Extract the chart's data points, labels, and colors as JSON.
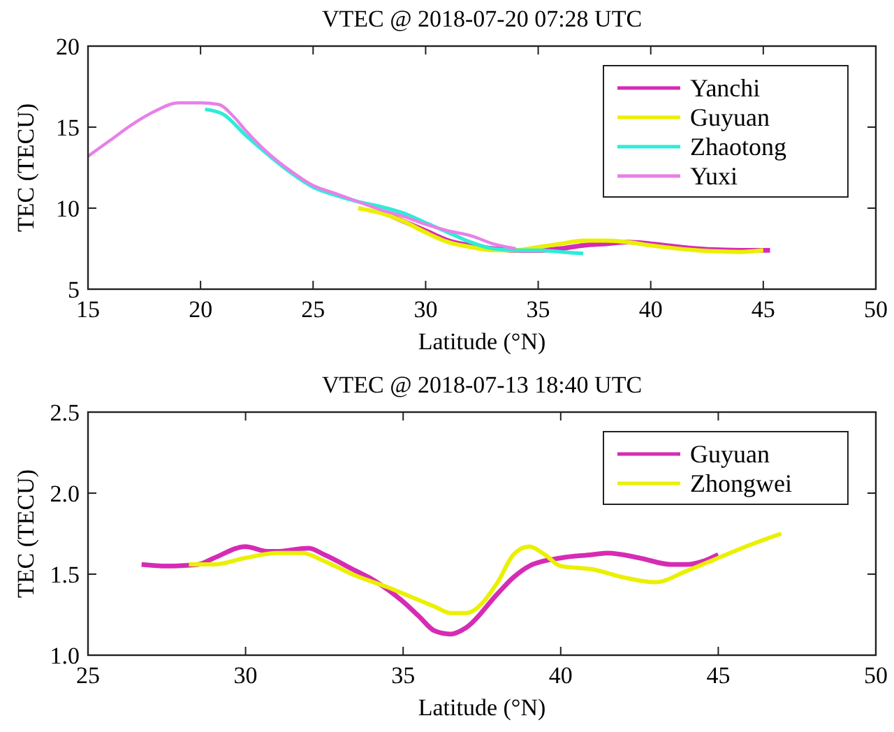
{
  "chart_data": [
    {
      "type": "line",
      "title": "VTEC @ 2018-07-20 07:28 UTC",
      "xlabel": "Latitude (°N)",
      "ylabel": "TEC (TECU)",
      "xlim": [
        15,
        50
      ],
      "xticks": [
        15,
        20,
        25,
        30,
        35,
        40,
        45,
        50
      ],
      "ylim": [
        5,
        20
      ],
      "yticks": [
        5,
        10,
        15,
        20
      ],
      "grid": false,
      "legend": "top right",
      "series": [
        {
          "name": "Yanchi",
          "color": "#d62bb5",
          "x": [
            28.5,
            30,
            31,
            32,
            33,
            34,
            35,
            36,
            37,
            38,
            39,
            40,
            42,
            44,
            45.3
          ],
          "values": [
            9.5,
            8.6,
            8.0,
            7.7,
            7.5,
            7.4,
            7.4,
            7.5,
            7.7,
            7.8,
            7.9,
            7.8,
            7.5,
            7.4,
            7.4
          ]
        },
        {
          "name": "Guyuan",
          "color": "#eaf000",
          "x": [
            27,
            28,
            29,
            30,
            31,
            32,
            33,
            34,
            35,
            36,
            37,
            38,
            39,
            40,
            42,
            44,
            45
          ],
          "values": [
            10.0,
            9.7,
            9.2,
            8.5,
            7.9,
            7.6,
            7.4,
            7.4,
            7.6,
            7.8,
            8.0,
            8.0,
            7.9,
            7.7,
            7.4,
            7.3,
            7.4
          ]
        },
        {
          "name": "Zhaotong",
          "color": "#2eecd8",
          "x": [
            20.2,
            21,
            22,
            23,
            24,
            25,
            26,
            27,
            28,
            29,
            30,
            31,
            32,
            33,
            34,
            35,
            36,
            37
          ],
          "values": [
            16.1,
            15.8,
            14.5,
            13.3,
            12.2,
            11.3,
            10.8,
            10.4,
            10.1,
            9.7,
            9.1,
            8.5,
            7.9,
            7.5,
            7.4,
            7.4,
            7.3,
            7.2
          ]
        },
        {
          "name": "Yuxi",
          "color": "#e880e8",
          "x": [
            15,
            16,
            17,
            18,
            19,
            20,
            20.8,
            21.5,
            22,
            23,
            24,
            25,
            26,
            27,
            28,
            29,
            30,
            31,
            32,
            33,
            34
          ],
          "values": [
            13.2,
            14.2,
            15.2,
            16.0,
            16.5,
            16.5,
            16.4,
            15.6,
            14.8,
            13.4,
            12.3,
            11.4,
            10.9,
            10.4,
            9.9,
            9.5,
            9.0,
            8.6,
            8.3,
            7.8,
            7.5
          ]
        }
      ]
    },
    {
      "type": "line",
      "title": "VTEC @ 2018-07-13 18:40 UTC",
      "xlabel": "Latitude (°N)",
      "ylabel": "TEC (TECU)",
      "xlim": [
        25,
        50
      ],
      "xticks": [
        25,
        30,
        35,
        40,
        45,
        50
      ],
      "ylim": [
        1.0,
        2.5
      ],
      "yticks": [
        {
          "value": 1,
          "label": "1.0"
        },
        {
          "value": 1.5,
          "label": "1.5"
        },
        {
          "value": 2,
          "label": "2.0"
        },
        {
          "value": 2.5,
          "label": "2.5"
        }
      ],
      "grid": false,
      "legend": "top right",
      "series": [
        {
          "name": "Guyuan",
          "color": "#d62bb5",
          "x": [
            26.7,
            27.5,
            28.5,
            29,
            30,
            30.7,
            31,
            32,
            32.5,
            33.5,
            34,
            35,
            35.5,
            36,
            36.5,
            37,
            38,
            38.5,
            39,
            40,
            41,
            41.5,
            42.5,
            43.5,
            44,
            45
          ],
          "values": [
            1.56,
            1.55,
            1.56,
            1.6,
            1.67,
            1.64,
            1.64,
            1.66,
            1.62,
            1.52,
            1.47,
            1.33,
            1.24,
            1.15,
            1.13,
            1.17,
            1.38,
            1.48,
            1.55,
            1.6,
            1.62,
            1.63,
            1.6,
            1.56,
            1.56,
            1.62
          ]
        },
        {
          "name": "Zhongwei",
          "color": "#eaf000",
          "x": [
            28.2,
            29,
            30,
            31,
            31.8,
            32.5,
            33.5,
            34.5,
            35,
            36,
            36.5,
            37,
            38,
            38.5,
            39,
            39.5,
            40,
            41,
            42,
            43,
            44,
            45,
            46,
            47
          ],
          "values": [
            1.56,
            1.56,
            1.6,
            1.63,
            1.63,
            1.58,
            1.49,
            1.42,
            1.38,
            1.3,
            1.26,
            1.26,
            1.45,
            1.62,
            1.67,
            1.62,
            1.55,
            1.53,
            1.48,
            1.45,
            1.52,
            1.6,
            1.68,
            1.75
          ]
        }
      ]
    }
  ]
}
